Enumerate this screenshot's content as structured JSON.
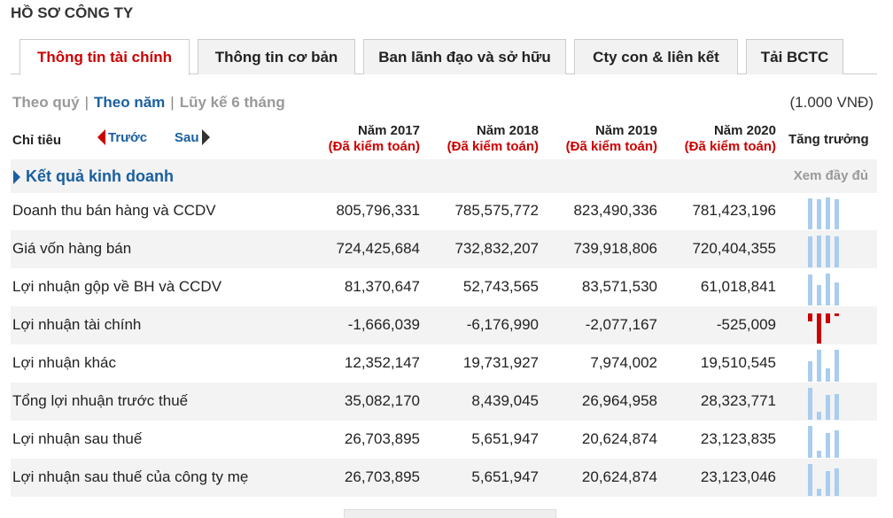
{
  "title": "HỒ SƠ CÔNG TY",
  "tabs": [
    {
      "label": "Thông tin tài chính",
      "active": true
    },
    {
      "label": "Thông tin cơ bản",
      "active": false
    },
    {
      "label": "Ban lãnh đạo và sở hữu",
      "active": false
    },
    {
      "label": "Cty con & liên kết",
      "active": false
    },
    {
      "label": "Tải BCTC",
      "active": false
    }
  ],
  "period": {
    "quarter": "Theo quý",
    "year": "Theo năm",
    "cumulative": "Lũy kế 6 tháng",
    "separator": "|",
    "active": "year"
  },
  "unit": "(1.000 VNĐ)",
  "header": {
    "label": "Chỉ tiêu",
    "prev": "Trước",
    "next": "Sau",
    "growth": "Tăng trưởng",
    "years": [
      {
        "year": "Năm 2017",
        "audit": "(Đã kiểm toán)"
      },
      {
        "year": "Năm 2018",
        "audit": "(Đã kiểm toán)"
      },
      {
        "year": "Năm 2019",
        "audit": "(Đã kiểm toán)"
      },
      {
        "year": "Năm 2020",
        "audit": "(Đã kiểm toán)"
      }
    ]
  },
  "section": {
    "title": "Kết quả kinh doanh",
    "more": "Xem đầy đủ"
  },
  "rows": [
    {
      "label": "Doanh thu bán hàng và CCDV",
      "values": [
        "805,796,331",
        "785,575,772",
        "823,490,336",
        "781,423,196"
      ],
      "series": [
        805796331,
        785575772,
        823490336,
        781423196
      ]
    },
    {
      "label": "Giá vốn hàng bán",
      "values": [
        "724,425,684",
        "732,832,207",
        "739,918,806",
        "720,404,355"
      ],
      "series": [
        724425684,
        732832207,
        739918806,
        720404355
      ]
    },
    {
      "label": "Lợi nhuận gộp về BH và CCDV",
      "values": [
        "81,370,647",
        "52,743,565",
        "83,571,530",
        "61,018,841"
      ],
      "series": [
        81370647,
        52743565,
        83571530,
        61018841
      ]
    },
    {
      "label": "Lợi nhuận tài chính",
      "values": [
        "-1,666,039",
        "-6,176,990",
        "-2,077,167",
        "-525,009"
      ],
      "series": [
        -1666039,
        -6176990,
        -2077167,
        -525009
      ]
    },
    {
      "label": "Lợi nhuận khác",
      "values": [
        "12,352,147",
        "19,731,927",
        "7,974,002",
        "19,510,545"
      ],
      "series": [
        12352147,
        19731927,
        7974002,
        19510545
      ]
    },
    {
      "label": "Tổng lợi nhuận trước thuế",
      "values": [
        "35,082,170",
        "8,439,045",
        "26,964,958",
        "28,323,771"
      ],
      "series": [
        35082170,
        8439045,
        26964958,
        28323771
      ]
    },
    {
      "label": "Lợi nhuận sau thuế",
      "values": [
        "26,703,895",
        "5,651,947",
        "20,624,874",
        "23,123,835"
      ],
      "series": [
        26703895,
        5651947,
        20624874,
        23123835
      ]
    },
    {
      "label": "Lợi nhuận sau thuế của công ty mẹ",
      "values": [
        "26,703,895",
        "5,651,947",
        "20,624,874",
        "23,123,046"
      ],
      "series": [
        26703895,
        5651947,
        20624874,
        23123046
      ]
    }
  ],
  "colors": {
    "positive_bar": "#a9cdee",
    "negative_bar": "#cc0000",
    "accent": "#1a5fa0",
    "active_tab": "#cc0000"
  }
}
